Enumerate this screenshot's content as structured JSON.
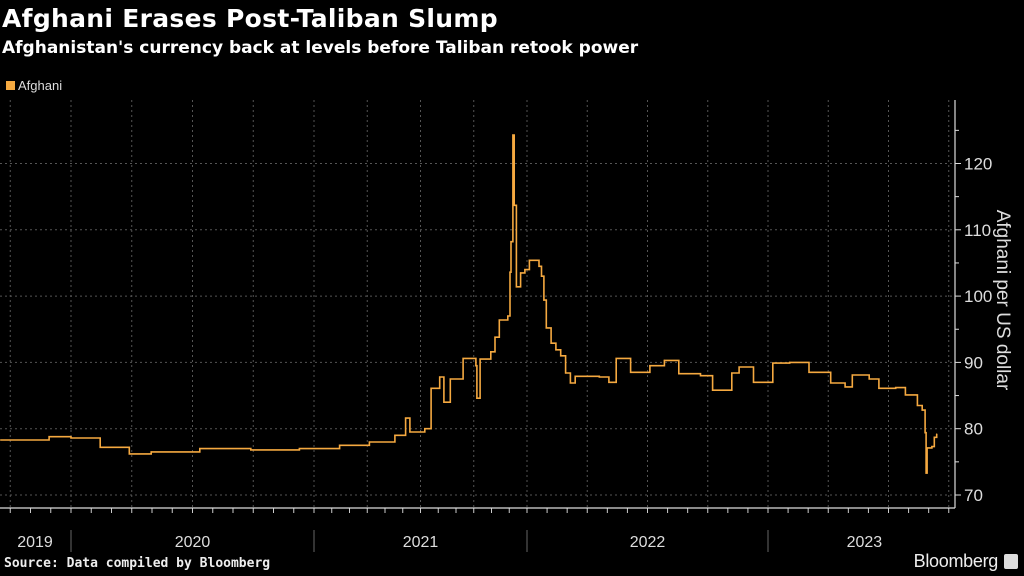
{
  "header": {
    "title": "Afghani Erases Post-Taliban Slump",
    "subtitle": "Afghanistan's currency back at levels before Taliban retook power"
  },
  "footer": {
    "source": "Source: Data compiled by Bloomberg",
    "brand": "Bloomberg"
  },
  "colors": {
    "series": "#f5a940",
    "background": "#000000",
    "grid": "#555555"
  },
  "chart_data": {
    "type": "line",
    "title": "Afghani Erases Post-Taliban Slump",
    "subtitle": "Afghanistan's currency back at levels before Taliban retook power",
    "xlabel": "",
    "ylabel": "Afghani per US dollar",
    "ylim": [
      68,
      128
    ],
    "xlim": [
      2019.71,
      2023.78
    ],
    "yticks": [
      70,
      80,
      90,
      100,
      110,
      120
    ],
    "ytick_labels": [
      "70",
      "80",
      "90",
      "100",
      "110",
      "120"
    ],
    "xtick_labels": [
      "2019",
      "2020",
      "2021",
      "2022",
      "2023"
    ],
    "legend": {
      "position": "top-left",
      "entries": [
        "Afghani"
      ]
    },
    "grid": true,
    "series": [
      {
        "name": "Afghani",
        "x": [
          2019.71,
          2019.91,
          2020.0,
          2020.12,
          2020.24,
          2020.33,
          2020.53,
          2020.74,
          2020.94,
          2021.12,
          2021.26,
          2021.38,
          2021.43,
          2021.45,
          2021.52,
          2021.55,
          2021.59,
          2021.61,
          2021.64,
          2021.7,
          2021.76,
          2021.765,
          2021.78,
          2021.83,
          2021.85,
          2021.87,
          2021.91,
          2021.92,
          2021.925,
          2021.934,
          2021.94,
          2021.95,
          2021.97,
          2021.99,
          2022.01,
          2022.05,
          2022.06,
          2022.07,
          2022.08,
          2022.1,
          2022.12,
          2022.14,
          2022.16,
          2022.18,
          2022.2,
          2022.3,
          2022.34,
          2022.37,
          2022.43,
          2022.51,
          2022.57,
          2022.63,
          2022.72,
          2022.77,
          2022.85,
          2022.88,
          2022.94,
          2023.02,
          2023.09,
          2023.17,
          2023.26,
          2023.32,
          2023.35,
          2023.42,
          2023.46,
          2023.53,
          2023.57,
          2023.62,
          2023.64,
          2023.652,
          2023.656,
          2023.66,
          2023.68,
          2023.69,
          2023.7
        ],
        "values": [
          78.3,
          78.8,
          78.6,
          77.2,
          76.2,
          76.5,
          77.0,
          76.8,
          77.0,
          77.5,
          78.0,
          79.0,
          81.6,
          79.5,
          80.0,
          86.1,
          87.8,
          84.0,
          87.5,
          90.6,
          89.5,
          84.6,
          90.5,
          91.6,
          93.8,
          96.4,
          97.0,
          103.6,
          108.2,
          124.3,
          113.7,
          101.4,
          103.5,
          104.0,
          105.4,
          104.5,
          103.0,
          99.4,
          95.2,
          92.9,
          91.9,
          91.0,
          88.4,
          86.9,
          87.9,
          87.8,
          87.0,
          90.6,
          88.5,
          89.5,
          90.3,
          88.3,
          88.0,
          85.8,
          88.4,
          89.3,
          87.0,
          89.9,
          90.0,
          88.5,
          86.9,
          86.3,
          88.1,
          87.5,
          86.1,
          86.2,
          85.1,
          83.5,
          82.8,
          79.4,
          73.3,
          77.1,
          77.3,
          78.7,
          79.2
        ]
      }
    ]
  }
}
